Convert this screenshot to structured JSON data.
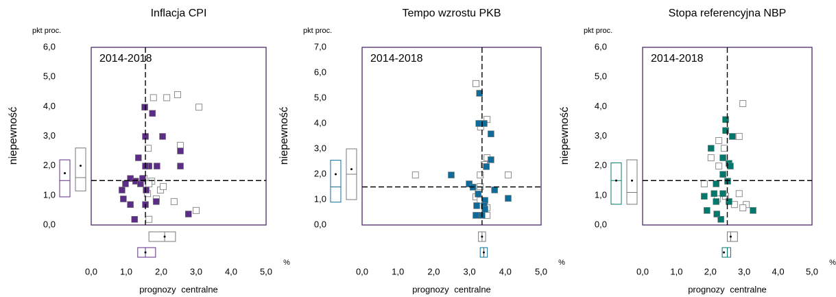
{
  "chart_data": [
    {
      "type": "scatter",
      "title": "Inflacja CPI",
      "annotation": "2014-2018",
      "ylabel": "niepewność",
      "yunit": "pkt proc.",
      "xlabel": "prognozy centralne",
      "xunit": "%",
      "xlim": [
        0,
        5
      ],
      "xticks": [
        {
          "value": 0,
          "label": "0,0"
        },
        {
          "value": 1,
          "label": "1,0"
        },
        {
          "value": 2,
          "label": "2,0"
        },
        {
          "value": 3,
          "label": "3,0"
        },
        {
          "value": 4,
          "label": "4,0"
        },
        {
          "value": 5,
          "label": "5,0"
        }
      ],
      "ylim": [
        0,
        6
      ],
      "yticks": [
        {
          "value": 0,
          "label": "0,0"
        },
        {
          "value": 1,
          "label": "1,0"
        },
        {
          "value": 2,
          "label": "2,0"
        },
        {
          "value": 3,
          "label": "3,0"
        },
        {
          "value": 4,
          "label": "4,0"
        },
        {
          "value": 5,
          "label": "5,0"
        },
        {
          "value": 6,
          "label": "6,0"
        }
      ],
      "ref_x": 1.55,
      "ref_y": 1.5,
      "series": [
        {
          "color": "#8c8c8c",
          "marker": "hollow",
          "x": [
            2.47,
            1.78,
            2.16,
            3.08,
            1.63,
            2.55,
            1.6,
            1.51,
            1.73,
            1.98,
            2.06,
            1.65,
            1.61,
            1.86,
            2.37,
            3.0,
            1.65
          ],
          "values": [
            4.4,
            4.3,
            4.3,
            3.98,
            2.59,
            2.69,
            1.99,
            1.57,
            1.48,
            1.18,
            1.3,
            1.39,
            1.06,
            0.88,
            0.79,
            0.49,
            0.19
          ],
          "y_box": {
            "q1": 1.15,
            "median": 1.6,
            "q3": 2.6,
            "mean": 2.0
          },
          "x_box": {
            "q1": 1.65,
            "median": 2.1,
            "q3": 2.41,
            "mean": 2.1
          }
        },
        {
          "color": "#5c2d86",
          "marker": "filled",
          "x": [
            1.53,
            1.75,
            2.04,
            1.55,
            2.55,
            2.55,
            1.35,
            1.65,
            1.88,
            1.55,
            1.12,
            1.27,
            1.41,
            1.47,
            0.98,
            0.88,
            1.57,
            0.92,
            1.12,
            1.55,
            1.86,
            1.24,
            2.78
          ],
          "values": [
            3.98,
            3.77,
            2.99,
            2.99,
            2.5,
            1.99,
            2.27,
            1.99,
            1.99,
            1.99,
            1.57,
            1.48,
            1.39,
            1.57,
            1.39,
            1.18,
            1.18,
            0.88,
            0.69,
            0.69,
            0.79,
            0.19,
            0.37
          ],
          "y_box": {
            "q1": 0.95,
            "median": 1.5,
            "q3": 2.2,
            "mean": 1.75
          },
          "x_box": {
            "q1": 1.33,
            "median": 1.55,
            "q3": 1.84,
            "mean": 1.55
          }
        }
      ]
    },
    {
      "type": "scatter",
      "title": "Tempo wzrostu PKB",
      "annotation": "2014-2018",
      "ylabel": "niepewność",
      "yunit": "pkt proc.",
      "xlabel": "prognozy centralne",
      "xunit": "%",
      "xlim": [
        0,
        5
      ],
      "xticks": [
        {
          "value": 0,
          "label": "0,0"
        },
        {
          "value": 1,
          "label": "1,0"
        },
        {
          "value": 2,
          "label": "2,0"
        },
        {
          "value": 3,
          "label": "3,0"
        },
        {
          "value": 4,
          "label": "4,0"
        },
        {
          "value": 5,
          "label": "5,0"
        }
      ],
      "ylim": [
        0,
        7
      ],
      "yticks": [
        {
          "value": 0,
          "label": "0,0"
        },
        {
          "value": 1,
          "label": "1,0"
        },
        {
          "value": 2,
          "label": "2,0"
        },
        {
          "value": 3,
          "label": "3,0"
        },
        {
          "value": 4,
          "label": "4,0"
        },
        {
          "value": 5,
          "label": "5,0"
        },
        {
          "value": 6,
          "label": "6,0"
        },
        {
          "value": 7,
          "label": "7,0"
        }
      ],
      "ref_x": 3.35,
      "ref_y": 1.5,
      "series": [
        {
          "color": "#8c8c8c",
          "marker": "hollow",
          "x": [
            3.18,
            3.31,
            3.49,
            3.49,
            3.41,
            3.3,
            4.08,
            1.49,
            3.3,
            3.18,
            3.49,
            3.3,
            3.49
          ],
          "values": [
            5.57,
            3.86,
            4.16,
            2.65,
            2.38,
            1.97,
            1.97,
            1.97,
            1.51,
            1.11,
            0.68,
            0.97,
            0.38
          ],
          "y_box": {
            "q1": 1.0,
            "median": 2.0,
            "q3": 3.0,
            "mean": 2.2
          },
          "x_box": {
            "q1": 3.25,
            "median": 3.35,
            "q3": 3.45,
            "mean": 3.35
          }
        },
        {
          "color": "#0e6b9a",
          "marker": "filled",
          "x": [
            3.28,
            3.26,
            3.41,
            3.6,
            3.6,
            3.47,
            2.49,
            2.99,
            3.1,
            3.7,
            4.08,
            3.24,
            3.43,
            3.2,
            3.41,
            3.18,
            3.35,
            3.43
          ],
          "values": [
            5.19,
            4.0,
            4.0,
            3.59,
            2.57,
            2.3,
            1.97,
            1.62,
            1.49,
            1.38,
            1.05,
            1.22,
            0.97,
            0.76,
            0.76,
            0.38,
            0.38,
            0.62
          ],
          "y_box": {
            "q1": 0.9,
            "median": 1.5,
            "q3": 2.55,
            "mean": 2.0
          },
          "x_box": {
            "q1": 3.3,
            "median": 3.4,
            "q3": 3.5,
            "mean": 3.4
          }
        }
      ]
    },
    {
      "type": "scatter",
      "title": "Stopa referencyjna NBP",
      "annotation": "2014-2018",
      "ylabel": "niepewność",
      "yunit": "pkt proc.",
      "xlabel": "prognozy centralne",
      "xunit": "%",
      "xlim": [
        0,
        5
      ],
      "xticks": [
        {
          "value": 0,
          "label": "0,0"
        },
        {
          "value": 1,
          "label": "1,0"
        },
        {
          "value": 2,
          "label": "2,0"
        },
        {
          "value": 3,
          "label": "3,0"
        },
        {
          "value": 4,
          "label": "4,0"
        },
        {
          "value": 5,
          "label": "5,0"
        }
      ],
      "ylim": [
        0,
        6
      ],
      "yticks": [
        {
          "value": 0,
          "label": "0,0"
        },
        {
          "value": 1,
          "label": "1,0"
        },
        {
          "value": 2,
          "label": "2,0"
        },
        {
          "value": 3,
          "label": "3,0"
        },
        {
          "value": 4,
          "label": "4,0"
        },
        {
          "value": 5,
          "label": "5,0"
        },
        {
          "value": 6,
          "label": "6,0"
        }
      ],
      "ref_x": 2.5,
      "ref_y": 1.5,
      "series": [
        {
          "color": "#8c8c8c",
          "marker": "hollow",
          "x": [
            2.96,
            2.85,
            2.25,
            2.41,
            2.02,
            2.25,
            1.82,
            2.85,
            2.45,
            2.71,
            3.06,
            2.96,
            2.21
          ],
          "values": [
            4.1,
            2.99,
            2.85,
            2.59,
            2.27,
            1.99,
            1.39,
            1.06,
            0.97,
            0.69,
            0.69,
            0.58,
            0.88
          ],
          "y_box": {
            "q1": 0.7,
            "median": 1.1,
            "q3": 2.2,
            "mean": 1.5
          },
          "x_box": {
            "q1": 2.5,
            "median": 2.6,
            "q3": 2.8,
            "mean": 2.6
          }
        },
        {
          "color": "#00786b",
          "marker": "filled",
          "x": [
            2.45,
            2.45,
            2.65,
            2.02,
            2.37,
            2.55,
            2.59,
            2.37,
            2.51,
            2.17,
            1.82,
            2.17,
            2.55,
            1.9,
            2.19,
            3.26,
            2.31,
            2.11,
            2.37
          ],
          "values": [
            3.56,
            3.19,
            2.99,
            2.59,
            2.27,
            2.08,
            1.99,
            1.71,
            1.48,
            1.39,
            0.97,
            0.79,
            0.79,
            0.49,
            0.37,
            0.49,
            0.19,
            1.06,
            1.06
          ],
          "y_box": {
            "q1": 0.7,
            "median": 1.5,
            "q3": 2.1,
            "mean": 1.5
          },
          "x_box": {
            "q1": 2.35,
            "median": 2.5,
            "q3": 2.6,
            "mean": 2.4
          }
        }
      ]
    }
  ]
}
